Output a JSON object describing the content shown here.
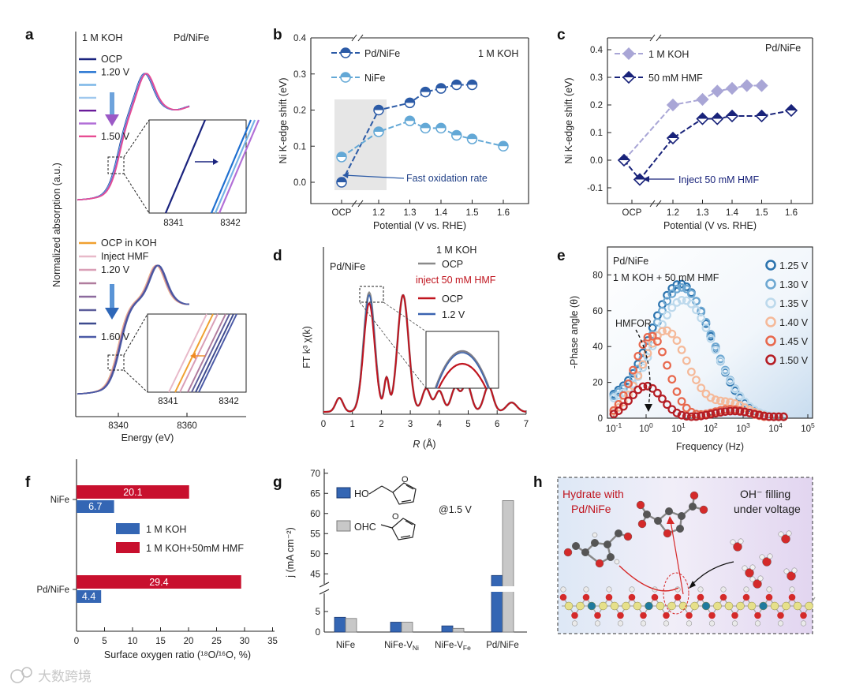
{
  "watermark": "大数跨境",
  "panel_labels": [
    "a",
    "b",
    "c",
    "d",
    "e",
    "f",
    "g",
    "h"
  ],
  "colors": {
    "pd_nife_dark": "#2b5aa6",
    "nife_light": "#63a8d6",
    "koh_light": "#a9a6d6",
    "hmf_navy": "#19237a",
    "red": "#c0151f",
    "gray": "#8a8a8a",
    "bar_blue": "#3466b4",
    "bar_red": "#c8102e",
    "bar_gray": "#c8c8c8"
  },
  "chart_data": [
    {
      "id": "a",
      "type": "line",
      "title_top": {
        "left": "1 M KOH",
        "right": "Pd/NiFe"
      },
      "top_legend": [
        "OCP",
        "1.20 V",
        "",
        "",
        "",
        "",
        "1.50 V"
      ],
      "bottom_legend": [
        "OCP in KOH",
        "Inject HMF",
        "1.20 V",
        "",
        "",
        "",
        "",
        "1.60 V"
      ],
      "xlabel": "Energy (eV)",
      "ylabel": "Normalized absorption (a.u.)",
      "xticks": [
        "8340",
        "8360"
      ],
      "inset_xticks": [
        "8341",
        "8342"
      ]
    },
    {
      "id": "b",
      "type": "line",
      "title": "1 M KOH",
      "xlabel": "Potential (V vs. RHE)",
      "ylabel": "Ni K-edge shift (eV)",
      "xtick_labels": [
        "OCP",
        "1.2",
        "1.3",
        "1.4",
        "1.5",
        "1.6"
      ],
      "ylim": [
        -0.05,
        0.4
      ],
      "yticks": [
        "0.0",
        "0.1",
        "0.2",
        "0.3",
        "0.4"
      ],
      "annotation": "Fast oxidation rate",
      "series": [
        {
          "name": "Pd/NiFe",
          "x": [
            "OCP",
            1.2,
            1.3,
            1.35,
            1.4,
            1.45,
            1.5
          ],
          "values": [
            0.0,
            0.2,
            0.22,
            0.25,
            0.26,
            0.27,
            0.27
          ]
        },
        {
          "name": "NiFe",
          "x": [
            "OCP",
            1.2,
            1.3,
            1.35,
            1.4,
            1.45,
            1.5,
            1.6
          ],
          "values": [
            0.07,
            0.14,
            0.17,
            0.15,
            0.15,
            0.13,
            0.12,
            0.1
          ]
        }
      ]
    },
    {
      "id": "c",
      "type": "line",
      "title": "Pd/NiFe",
      "xlabel": "Potential (V vs. RHE)",
      "ylabel": "Ni K-edge shift (eV)",
      "xtick_labels": [
        "OCP",
        "1.2",
        "1.3",
        "1.4",
        "1.5",
        "1.6"
      ],
      "ylim": [
        -0.12,
        0.44
      ],
      "yticks": [
        "-0.1",
        "0.0",
        "0.1",
        "0.2",
        "0.3",
        "0.4"
      ],
      "annotation": "Inject 50 mM HMF",
      "series": [
        {
          "name": "1 M KOH",
          "x": [
            "OCP",
            1.2,
            1.3,
            1.35,
            1.4,
            1.45,
            1.5
          ],
          "values": [
            0.0,
            0.2,
            0.22,
            0.25,
            0.26,
            0.27,
            0.27
          ]
        },
        {
          "name": "50 mM HMF",
          "x": [
            "OCP",
            "HMF",
            1.2,
            1.3,
            1.35,
            1.4,
            1.5,
            1.6
          ],
          "values": [
            0.0,
            -0.07,
            0.08,
            0.15,
            0.15,
            0.16,
            0.16,
            0.18
          ]
        }
      ]
    },
    {
      "id": "d",
      "type": "line",
      "title": "Pd/NiFe",
      "legend_head1": "1 M KOH",
      "legend_head2": "inject 50 mM HMF",
      "series_names": [
        "OCP",
        "OCP",
        "1.2 V"
      ],
      "xlabel_italic": "R",
      "xlabel_rest": " (Å)",
      "ylabel": "FT k³ χ(k)",
      "xlim": [
        0,
        7
      ],
      "xticks": [
        "0",
        "1",
        "2",
        "3",
        "4",
        "5",
        "6",
        "7"
      ]
    },
    {
      "id": "e",
      "type": "scatter",
      "title1": "Pd/NiFe",
      "title2": "1 M KOH + 50 mM HMF",
      "annotation": "HMFOR",
      "xlabel": "Frequency (Hz)",
      "ylabel": "-Phase angle (θ)",
      "ylim": [
        0,
        90
      ],
      "yticks": [
        "0",
        "20",
        "40",
        "60",
        "80"
      ],
      "xtick_exps": [
        "-1",
        "0",
        "1",
        "2",
        "3",
        "4",
        "5"
      ],
      "series": [
        {
          "name": "1.25 V",
          "color": "#2b73ae",
          "peak": 75,
          "peak_log_f": 1.05
        },
        {
          "name": "1.30 V",
          "color": "#6ea8d2",
          "peak": 73,
          "peak_log_f": 1.1
        },
        {
          "name": "1.35 V",
          "color": "#bcd9ec",
          "peak": 66,
          "peak_log_f": 1.15
        },
        {
          "name": "1.40 V",
          "color": "#f5b999",
          "peak": 49,
          "peak_log_f": 0.6
        },
        {
          "name": "1.45 V",
          "color": "#e8684d",
          "peak": 46,
          "peak_log_f": 0.15
        },
        {
          "name": "1.50 V",
          "color": "#b51d24",
          "peak": 18,
          "peak_log_f": 0.0
        }
      ]
    },
    {
      "id": "f",
      "type": "bar",
      "orientation": "horizontal",
      "categories": [
        "NiFe",
        "Pd/NiFe"
      ],
      "series": [
        {
          "name": "1 M KOH",
          "values": [
            6.7,
            4.4
          ]
        },
        {
          "name": "1 M KOH+50mM HMF",
          "values": [
            20.1,
            29.4
          ]
        }
      ],
      "xlim": [
        0,
        35
      ],
      "xticks": [
        "0",
        "5",
        "10",
        "15",
        "20",
        "25",
        "30",
        "35"
      ],
      "xlabel": "Surface oxygen ratio (¹⁸O/¹⁶O, %)"
    },
    {
      "id": "g",
      "type": "bar",
      "categories": [
        "NiFe",
        "NiFe-VNi",
        "NiFe-VFe",
        "Pd/NiFe"
      ],
      "category_main": [
        "NiFe",
        "NiFe-V",
        "NiFe-V",
        "Pd/NiFe"
      ],
      "category_sub": [
        "",
        "Ni",
        "Fe",
        ""
      ],
      "series": [
        {
          "name": "HMF",
          "values": [
            3.6,
            2.4,
            1.5,
            44.6
          ]
        },
        {
          "name": "FDCA",
          "values": [
            3.3,
            2.4,
            0.9,
            63.2
          ]
        }
      ],
      "legend_prefix_1": "HO",
      "legend_prefix_2": "OHC",
      "note": "@1.5 V",
      "ylabel": "j (mA cm⁻²)",
      "yticks_low": [
        "0",
        "5"
      ],
      "yticks_high": [
        "45",
        "50",
        "55",
        "60",
        "65",
        "70"
      ]
    }
  ],
  "panel_h": {
    "title_left_1": "Hydrate with",
    "title_left_2": "Pd/NiFe",
    "title_right_1": "OH⁻ filling",
    "title_right_2": "under voltage"
  }
}
